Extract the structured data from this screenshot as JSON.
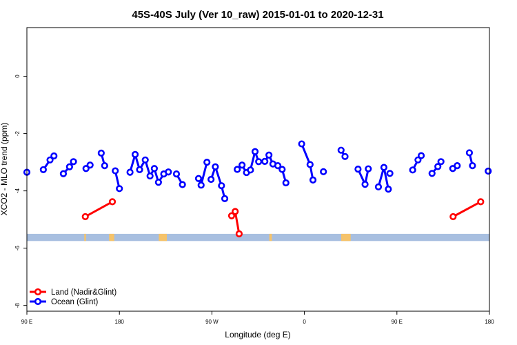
{
  "chart_data": {
    "type": "line",
    "title": "45S-40S July (Ver 10_raw)   2015-01-01 to 2020-12-31",
    "xlabel": "Longitude (deg E)",
    "ylabel": "XCO2 - MLO trend (ppm)",
    "xlim": [
      -90,
      180
    ],
    "ylim": [
      -8.2,
      1.7
    ],
    "x_ticks": [
      -90,
      -36,
      18,
      72,
      126,
      180
    ],
    "x_tick_labels": [
      "90 E",
      "180",
      "90 W",
      "0",
      "90 E",
      "180"
    ],
    "y_ticks": [
      0,
      -2,
      -4,
      -6,
      -8
    ],
    "y_tick_labels": [
      "0",
      "-2",
      "-4",
      "-6",
      "-8"
    ],
    "grid": false,
    "legend_position": "bottom-left",
    "land_band": {
      "y_min": -5.75,
      "y_max": -5.5,
      "color": "#a8bfe0",
      "land_color": "#f5c36b",
      "land_segments": [
        [
          -56.5,
          -55.5
        ],
        [
          -42,
          -39
        ],
        [
          -13,
          -8.3
        ],
        [
          51.5,
          53
        ],
        [
          93.5,
          99
        ]
      ]
    },
    "series": [
      {
        "name": "Land (Nadir&Glint)",
        "color": "#ff0000",
        "segments": [
          [
            [
              -55.9,
              -4.9
            ],
            [
              -40.1,
              -4.38
            ]
          ],
          [
            [
              29.5,
              -4.87
            ],
            [
              31.6,
              -4.72
            ],
            [
              33.9,
              -5.5
            ]
          ],
          [
            [
              158.8,
              -4.9
            ],
            [
              174.9,
              -4.38
            ]
          ]
        ]
      },
      {
        "name": "Ocean (Glint)",
        "color": "#0000ff",
        "segments": [
          [
            [
              -90,
              -3.35
            ]
          ],
          [
            [
              -80.4,
              -3.26
            ],
            [
              -76.5,
              -2.92
            ],
            [
              -74.2,
              -2.78
            ]
          ],
          [
            [
              -68.7,
              -3.4
            ],
            [
              -65.1,
              -3.16
            ],
            [
              -62.8,
              -2.98
            ]
          ],
          [
            [
              -55.5,
              -3.22
            ],
            [
              -53.1,
              -3.1
            ]
          ],
          [
            [
              -46.6,
              -2.68
            ],
            [
              -44.6,
              -3.12
            ]
          ],
          [
            [
              -38.4,
              -3.3
            ],
            [
              -36,
              -3.92
            ]
          ],
          [
            [
              -29.8,
              -3.35
            ],
            [
              -26.8,
              -2.73
            ],
            [
              -24.2,
              -3.26
            ],
            [
              -20.9,
              -2.92
            ],
            [
              -18.1,
              -3.48
            ],
            [
              -15.6,
              -3.22
            ],
            [
              -13.2,
              -3.7
            ],
            [
              -10.1,
              -3.41
            ],
            [
              -7.4,
              -3.34
            ]
          ],
          [
            [
              -2.7,
              -3.41
            ],
            [
              0.8,
              -3.78
            ]
          ],
          [
            [
              10.2,
              -3.57
            ],
            [
              11.7,
              -3.8
            ],
            [
              15.1,
              -3
            ]
          ],
          [
            [
              17.5,
              -3.6
            ],
            [
              20,
              -3.16
            ],
            [
              23.6,
              -3.82
            ],
            [
              25.5,
              -4.27
            ]
          ],
          [
            [
              32.8,
              -3.25
            ],
            [
              35.6,
              -3.1
            ],
            [
              38.2,
              -3.36
            ],
            [
              40.5,
              -3.27
            ],
            [
              43.2,
              -2.63
            ],
            [
              45.3,
              -2.98
            ],
            [
              48.9,
              -2.97
            ],
            [
              51.3,
              -2.75
            ],
            [
              53.6,
              -3.06
            ],
            [
              56.5,
              -3.12
            ],
            [
              59,
              -3.25
            ],
            [
              61.2,
              -3.72
            ]
          ],
          [
            [
              70.4,
              -2.36
            ],
            [
              75.3,
              -3.08
            ],
            [
              77,
              -3.62
            ]
          ],
          [
            [
              83.1,
              -3.33
            ]
          ],
          [
            [
              93.4,
              -2.58
            ],
            [
              95.7,
              -2.8
            ]
          ],
          [
            [
              103.3,
              -3.24
            ],
            [
              107.4,
              -3.77
            ],
            [
              109.3,
              -3.23
            ]
          ],
          [
            [
              115.2,
              -3.86
            ],
            [
              118.4,
              -3.18
            ],
            [
              121,
              -3.94
            ]
          ],
          [
            [
              121.9,
              -3.39
            ]
          ],
          [
            [
              135.2,
              -3.27
            ],
            [
              138.3,
              -2.92
            ],
            [
              140.2,
              -2.77
            ]
          ],
          [
            [
              146.5,
              -3.39
            ],
            [
              149.9,
              -3.15
            ],
            [
              151.7,
              -2.98
            ]
          ],
          [
            [
              158.6,
              -3.22
            ],
            [
              161.2,
              -3.12
            ]
          ],
          [
            [
              168.3,
              -2.67
            ],
            [
              170.1,
              -3.12
            ]
          ],
          [
            [
              179.3,
              -3.31
            ]
          ]
        ]
      }
    ]
  }
}
